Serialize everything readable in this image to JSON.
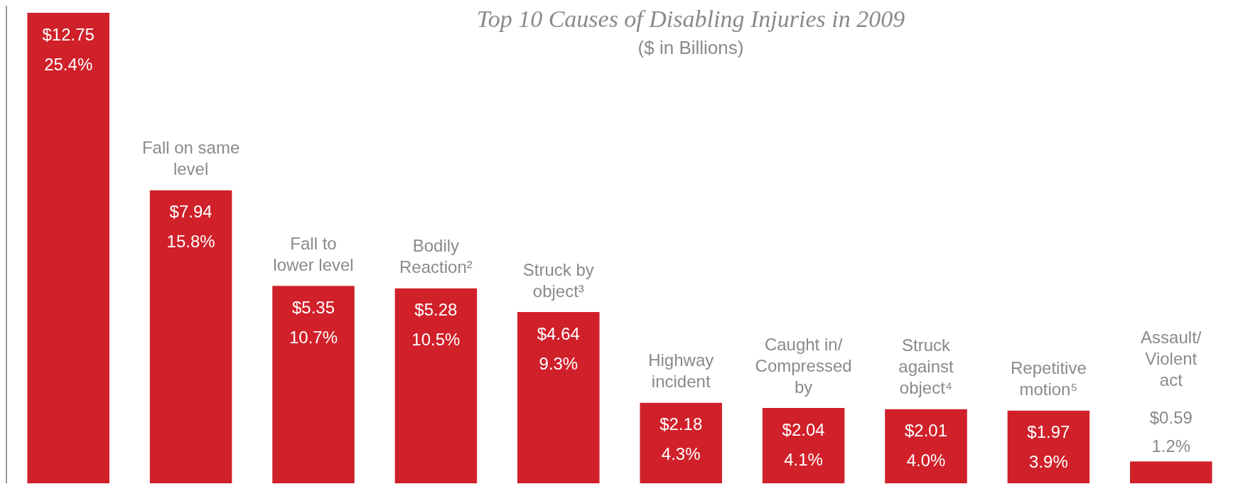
{
  "chart_data": {
    "type": "bar",
    "title": "Top 10 Causes of Disabling Injuries in 2009",
    "subtitle": "($ in Billions)",
    "categories": [
      null,
      "Fall on same\nlevel",
      "Fall to\nlower level",
      "Bodily\nReaction²",
      "Struck by\nobject³",
      "Highway\nincident",
      "Caught in/\nCompressed\nby",
      "Struck\nagainst\nobject⁴",
      "Repetitive\nmotion⁵",
      "Assault/\nViolent\nact"
    ],
    "values": [
      12.75,
      7.94,
      5.35,
      5.28,
      4.64,
      2.18,
      2.04,
      2.01,
      1.97,
      0.59
    ],
    "value_labels": [
      "$12.75\n25.4%",
      "$7.94\n15.8%",
      "$5.35\n10.7%",
      "$5.28\n10.5%",
      "$4.64\n9.3%",
      "$2.18\n4.3%",
      "$2.04\n4.1%",
      "$2.01\n4.0%",
      "$1.97\n3.9%",
      "$0.59\n1.2%"
    ],
    "color": "#d0202a"
  }
}
